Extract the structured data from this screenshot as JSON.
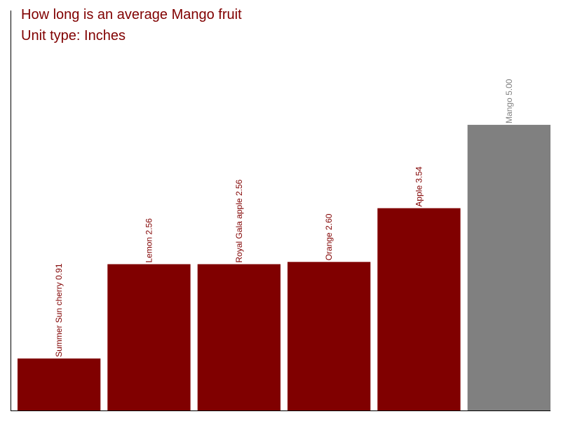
{
  "chart_data": {
    "type": "bar",
    "title": "How long is an average Mango fruit",
    "subtitle": "Unit type: Inches",
    "categories": [
      "Summer Sun cherry",
      "Lemon",
      "Royal Gala apple",
      "Orange",
      "Apple",
      "Mango"
    ],
    "values": [
      0.91,
      2.56,
      2.56,
      2.6,
      3.54,
      5.0
    ],
    "data_labels": [
      "Summer Sun cherry 0.91",
      "Lemon 2.56",
      "Royal Gala apple 2.56",
      "Orange 2.60",
      "Apple 3.54",
      "Mango 5.00"
    ],
    "colors": [
      "#800000",
      "#800000",
      "#800000",
      "#800000",
      "#800000",
      "#808080"
    ],
    "label_colors": [
      "#800000",
      "#800000",
      "#800000",
      "#800000",
      "#800000",
      "#808080"
    ],
    "ylim": [
      0,
      7
    ],
    "xlabel": "",
    "ylabel": "",
    "grid": false,
    "legend": "none"
  }
}
